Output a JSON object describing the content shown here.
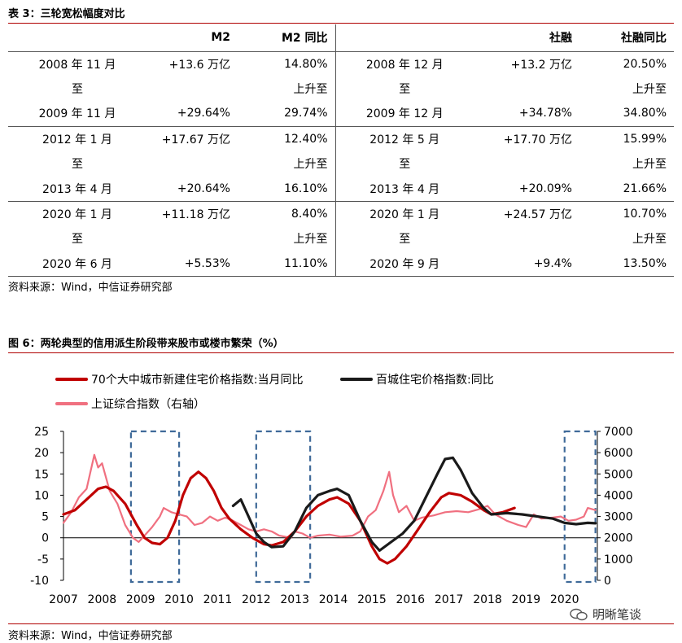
{
  "table": {
    "caption": "表 3：三轮宽松幅度对比",
    "headers": [
      "",
      "M2",
      "M2 同比",
      "",
      "社融",
      "社融同比"
    ],
    "groups": [
      {
        "rows": [
          [
            "2008 年 11 月",
            "+13.6 万亿",
            "14.80%",
            "2008 年 12 月",
            "+13.2 万亿",
            "20.50%"
          ],
          [
            "至",
            "",
            "上升至",
            "至",
            "",
            "上升至"
          ],
          [
            "2009 年 11 月",
            "+29.64%",
            "29.74%",
            "2009 年 12 月",
            "+34.78%",
            "34.80%"
          ]
        ]
      },
      {
        "rows": [
          [
            "2012 年 1 月",
            "+17.67 万亿",
            "12.40%",
            "2012 年 5 月",
            "+17.70 万亿",
            "15.99%"
          ],
          [
            "至",
            "",
            "上升至",
            "至",
            "",
            "上升至"
          ],
          [
            "2013 年 4 月",
            "+20.64%",
            "16.10%",
            "2013 年 4 月",
            "+20.09%",
            "21.66%"
          ]
        ]
      },
      {
        "rows": [
          [
            "2020 年 1 月",
            "+11.18 万亿",
            "8.40%",
            "2020 年 1 月",
            "+24.57 万亿",
            "10.70%"
          ],
          [
            "至",
            "",
            "上升至",
            "至",
            "",
            "上升至"
          ],
          [
            "2020 年 6 月",
            "+5.53%",
            "11.10%",
            "2020 年 9 月",
            "+9.4%",
            "13.50%"
          ]
        ]
      }
    ],
    "source": "资料来源：Wind，中信证券研究部"
  },
  "figure": {
    "caption": "图 6：两轮典型的信用派生阶段带来股市或楼市繁荣（%）",
    "source": "资料来源：Wind，中信证券研究部",
    "watermark": "明晰笔谈"
  },
  "chart_data": {
    "type": "line",
    "x_ticks": [
      "2007",
      "2008",
      "2009",
      "2010",
      "2011",
      "2012",
      "2013",
      "2014",
      "2015",
      "2016",
      "2017",
      "2018",
      "2019",
      "2020"
    ],
    "y_left_ticks": [
      "25",
      "20",
      "15",
      "10",
      "5",
      "0",
      "-5",
      "-10"
    ],
    "y_right_ticks": [
      "7000",
      "6000",
      "5000",
      "4000",
      "3000",
      "2000",
      "1000",
      "0"
    ],
    "ylim_left": [
      -10,
      25
    ],
    "ylim_right": [
      0,
      7000
    ],
    "legend": [
      {
        "name": "70个大中城市新建住宅价格指数:当月同比",
        "color": "#c00000"
      },
      {
        "name": "百城住宅价格指数:同比",
        "color": "#1a1a1a"
      },
      {
        "name": "上证综合指数（右轴）",
        "color": "#f07080"
      }
    ],
    "series": [
      {
        "name": "70个大中城市新建住宅价格指数:当月同比",
        "axis": "left",
        "color": "#c00000",
        "points": [
          [
            2007.0,
            5.5
          ],
          [
            2007.3,
            6.5
          ],
          [
            2007.6,
            9
          ],
          [
            2007.9,
            11.5
          ],
          [
            2008.1,
            12
          ],
          [
            2008.3,
            11
          ],
          [
            2008.6,
            8
          ],
          [
            2008.9,
            3
          ],
          [
            2009.1,
            0
          ],
          [
            2009.3,
            -1.2
          ],
          [
            2009.5,
            -1.5
          ],
          [
            2009.7,
            0
          ],
          [
            2009.9,
            4
          ],
          [
            2010.1,
            10
          ],
          [
            2010.3,
            14
          ],
          [
            2010.5,
            15.5
          ],
          [
            2010.7,
            14
          ],
          [
            2010.9,
            11
          ],
          [
            2011.1,
            7
          ],
          [
            2011.3,
            4.5
          ],
          [
            2011.6,
            2
          ],
          [
            2011.9,
            0
          ],
          [
            2012.2,
            -1.5
          ],
          [
            2012.4,
            -1.8
          ],
          [
            2012.7,
            -1
          ],
          [
            2013.0,
            1.5
          ],
          [
            2013.3,
            5
          ],
          [
            2013.6,
            7.5
          ],
          [
            2013.9,
            9
          ],
          [
            2014.1,
            9.5
          ],
          [
            2014.4,
            8
          ],
          [
            2014.7,
            4
          ],
          [
            2015.0,
            -2
          ],
          [
            2015.2,
            -5
          ],
          [
            2015.4,
            -6
          ],
          [
            2015.6,
            -5
          ],
          [
            2015.9,
            -2
          ],
          [
            2016.2,
            2
          ],
          [
            2016.5,
            6
          ],
          [
            2016.8,
            9.5
          ],
          [
            2017.0,
            10.5
          ],
          [
            2017.3,
            10
          ],
          [
            2017.6,
            8.5
          ],
          [
            2017.9,
            6.5
          ],
          [
            2018.1,
            5.5
          ],
          [
            2018.4,
            6
          ],
          [
            2018.7,
            7
          ]
        ]
      },
      {
        "name": "百城住宅价格指数:同比",
        "axis": "left",
        "color": "#1a1a1a",
        "points": [
          [
            2011.4,
            7.5
          ],
          [
            2011.6,
            9
          ],
          [
            2011.8,
            5
          ],
          [
            2012.0,
            1
          ],
          [
            2012.2,
            -1
          ],
          [
            2012.4,
            -2.2
          ],
          [
            2012.7,
            -2
          ],
          [
            2013.0,
            1.5
          ],
          [
            2013.3,
            7
          ],
          [
            2013.6,
            10
          ],
          [
            2013.9,
            11
          ],
          [
            2014.1,
            11.5
          ],
          [
            2014.4,
            10
          ],
          [
            2014.7,
            4
          ],
          [
            2015.0,
            -1
          ],
          [
            2015.2,
            -3
          ],
          [
            2015.5,
            -1
          ],
          [
            2015.8,
            1
          ],
          [
            2016.1,
            4
          ],
          [
            2016.4,
            9.5
          ],
          [
            2016.7,
            15
          ],
          [
            2016.9,
            18.5
          ],
          [
            2017.1,
            18.8
          ],
          [
            2017.3,
            16
          ],
          [
            2017.6,
            10.5
          ],
          [
            2017.9,
            7
          ],
          [
            2018.1,
            5.5
          ],
          [
            2018.5,
            5.8
          ],
          [
            2018.9,
            5.5
          ],
          [
            2019.3,
            5
          ],
          [
            2019.7,
            4.5
          ],
          [
            2020.0,
            3.5
          ],
          [
            2020.3,
            3.2
          ],
          [
            2020.6,
            3.5
          ],
          [
            2020.8,
            3.4
          ]
        ]
      },
      {
        "name": "上证综合指数（右轴）",
        "axis": "right",
        "color": "#f07080",
        "points": [
          [
            2007.0,
            2700
          ],
          [
            2007.2,
            3200
          ],
          [
            2007.4,
            3900
          ],
          [
            2007.6,
            4300
          ],
          [
            2007.8,
            5900
          ],
          [
            2007.9,
            5300
          ],
          [
            2008.0,
            5500
          ],
          [
            2008.2,
            4200
          ],
          [
            2008.4,
            3600
          ],
          [
            2008.6,
            2600
          ],
          [
            2008.8,
            2000
          ],
          [
            2008.95,
            1800
          ],
          [
            2009.1,
            2100
          ],
          [
            2009.3,
            2500
          ],
          [
            2009.5,
            3000
          ],
          [
            2009.6,
            3400
          ],
          [
            2009.8,
            3200
          ],
          [
            2010.0,
            3100
          ],
          [
            2010.2,
            3000
          ],
          [
            2010.4,
            2600
          ],
          [
            2010.6,
            2700
          ],
          [
            2010.8,
            3000
          ],
          [
            2011.0,
            2800
          ],
          [
            2011.2,
            2950
          ],
          [
            2011.4,
            2800
          ],
          [
            2011.6,
            2600
          ],
          [
            2011.8,
            2400
          ],
          [
            2012.0,
            2300
          ],
          [
            2012.2,
            2400
          ],
          [
            2012.4,
            2300
          ],
          [
            2012.6,
            2100
          ],
          [
            2012.9,
            2000
          ],
          [
            2013.0,
            2300
          ],
          [
            2013.2,
            2200
          ],
          [
            2013.4,
            2000
          ],
          [
            2013.6,
            2100
          ],
          [
            2013.9,
            2150
          ],
          [
            2014.2,
            2050
          ],
          [
            2014.5,
            2100
          ],
          [
            2014.7,
            2300
          ],
          [
            2014.9,
            3000
          ],
          [
            2015.1,
            3300
          ],
          [
            2015.3,
            4200
          ],
          [
            2015.45,
            5100
          ],
          [
            2015.55,
            4000
          ],
          [
            2015.7,
            3200
          ],
          [
            2015.9,
            3500
          ],
          [
            2016.1,
            2800
          ],
          [
            2016.3,
            2950
          ],
          [
            2016.6,
            3050
          ],
          [
            2016.9,
            3200
          ],
          [
            2017.2,
            3250
          ],
          [
            2017.5,
            3200
          ],
          [
            2017.8,
            3350
          ],
          [
            2018.0,
            3500
          ],
          [
            2018.2,
            3100
          ],
          [
            2018.5,
            2800
          ],
          [
            2018.8,
            2600
          ],
          [
            2019.0,
            2500
          ],
          [
            2019.2,
            3100
          ],
          [
            2019.4,
            2900
          ],
          [
            2019.7,
            2950
          ],
          [
            2019.9,
            3000
          ],
          [
            2020.1,
            2800
          ],
          [
            2020.3,
            2850
          ],
          [
            2020.5,
            3000
          ],
          [
            2020.6,
            3400
          ],
          [
            2020.8,
            3300
          ]
        ]
      }
    ],
    "highlight_periods": [
      [
        2008.75,
        2010.0
      ],
      [
        2012.0,
        2013.4
      ],
      [
        2020.0,
        2020.8
      ]
    ]
  }
}
